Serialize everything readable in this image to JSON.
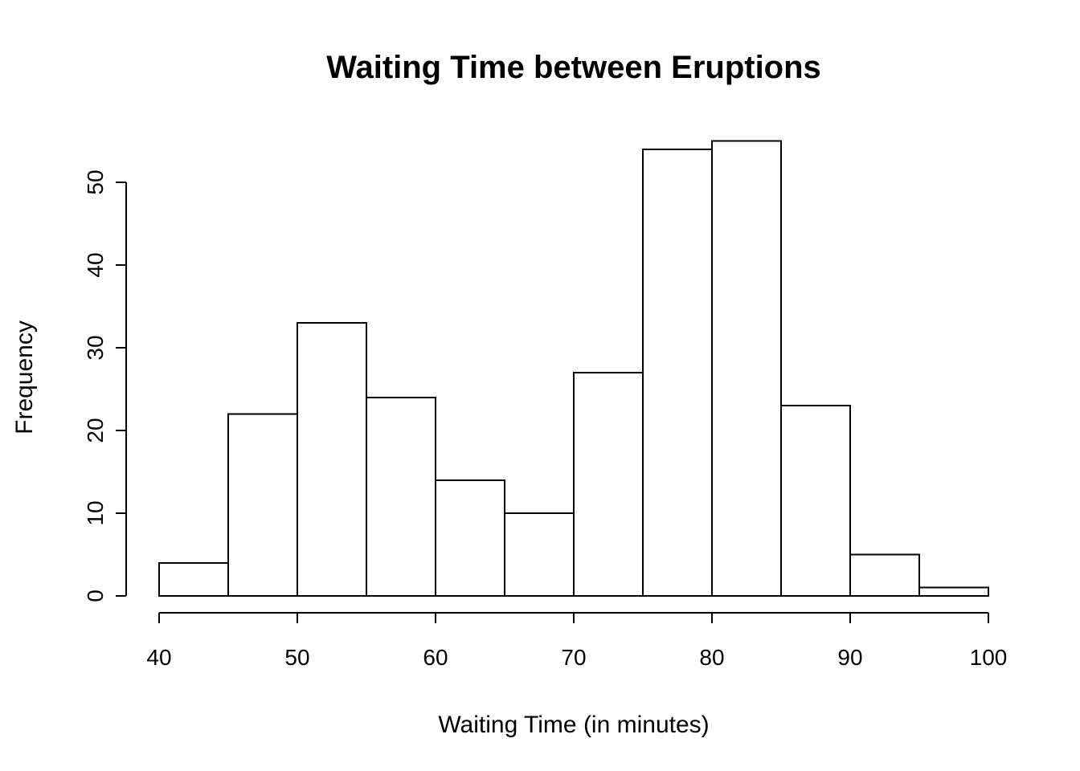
{
  "chart_data": {
    "type": "bar",
    "subtype": "histogram",
    "title": "Waiting Time between Eruptions",
    "xlabel": "Waiting Time (in minutes)",
    "ylabel": "Frequency",
    "breaks": [
      40,
      45,
      50,
      55,
      60,
      65,
      70,
      75,
      80,
      85,
      90,
      95,
      100
    ],
    "counts": [
      4,
      22,
      33,
      24,
      14,
      10,
      27,
      54,
      55,
      23,
      5,
      1
    ],
    "x_ticks": [
      40,
      50,
      60,
      70,
      80,
      90,
      100
    ],
    "y_ticks": [
      0,
      10,
      20,
      30,
      40,
      50
    ],
    "xlim": [
      40,
      100
    ],
    "ylim": [
      0,
      50
    ],
    "grid": false,
    "legend_position": "none",
    "bar_fill": "#ffffff",
    "bar_stroke": "#000000",
    "axis_color": "#000000",
    "background": "#ffffff"
  }
}
